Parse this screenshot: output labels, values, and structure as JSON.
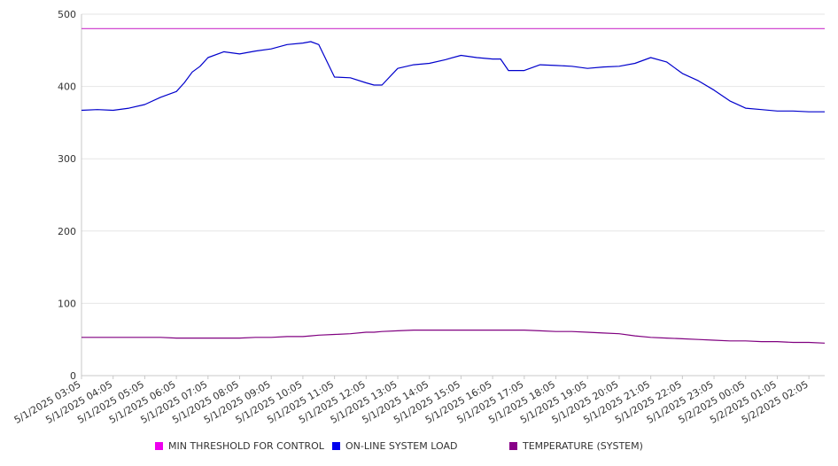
{
  "chart_data": {
    "type": "line",
    "title": "",
    "xlabel": "",
    "ylabel": "",
    "ylim": [
      0,
      500
    ],
    "yticks": [
      0,
      100,
      200,
      300,
      400,
      500
    ],
    "grid": "horizontal",
    "legend_position": "bottom",
    "x_tick_labels": [
      "5/1/2025 03:05",
      "5/1/2025 04:05",
      "5/1/2025 05:05",
      "5/1/2025 06:05",
      "5/1/2025 07:05",
      "5/1/2025 08:05",
      "5/1/2025 09:05",
      "5/1/2025 10:05",
      "5/1/2025 11:05",
      "5/1/2025 12:05",
      "5/1/2025 13:05",
      "5/1/2025 14:05",
      "5/1/2025 15:05",
      "5/1/2025 16:05",
      "5/1/2025 17:05",
      "5/1/2025 18:05",
      "5/1/2025 19:05",
      "5/1/2025 20:05",
      "5/1/2025 21:05",
      "5/1/2025 22:05",
      "5/1/2025 23:05",
      "5/2/2025 00:05",
      "5/2/2025 01:05",
      "5/2/2025 02:05"
    ],
    "x": [
      "5/1/2025 03:05",
      "5/1/2025 03:35",
      "5/1/2025 04:05",
      "5/1/2025 04:35",
      "5/1/2025 05:05",
      "5/1/2025 05:35",
      "5/1/2025 06:05",
      "5/1/2025 06:20",
      "5/1/2025 06:35",
      "5/1/2025 06:50",
      "5/1/2025 07:05",
      "5/1/2025 07:35",
      "5/1/2025 08:05",
      "5/1/2025 08:35",
      "5/1/2025 09:05",
      "5/1/2025 09:35",
      "5/1/2025 10:05",
      "5/1/2025 10:20",
      "5/1/2025 10:35",
      "5/1/2025 11:05",
      "5/1/2025 11:35",
      "5/1/2025 12:05",
      "5/1/2025 12:20",
      "5/1/2025 12:35",
      "5/1/2025 13:05",
      "5/1/2025 13:35",
      "5/1/2025 14:05",
      "5/1/2025 14:35",
      "5/1/2025 15:05",
      "5/1/2025 15:35",
      "5/1/2025 16:05",
      "5/1/2025 16:20",
      "5/1/2025 16:35",
      "5/1/2025 17:05",
      "5/1/2025 17:35",
      "5/1/2025 18:05",
      "5/1/2025 18:35",
      "5/1/2025 19:05",
      "5/1/2025 19:35",
      "5/1/2025 20:05",
      "5/1/2025 20:35",
      "5/1/2025 21:05",
      "5/1/2025 21:35",
      "5/1/2025 22:05",
      "5/1/2025 22:35",
      "5/1/2025 23:05",
      "5/1/2025 23:35",
      "5/2/2025 00:05",
      "5/2/2025 00:35",
      "5/2/2025 01:05",
      "5/2/2025 01:35",
      "5/2/2025 02:05",
      "5/2/2025 02:35"
    ],
    "series": [
      {
        "name": "MIN THRESHOLD FOR CONTROL",
        "color": "#cc33cc",
        "values": [
          480,
          480,
          480,
          480,
          480,
          480,
          480,
          480,
          480,
          480,
          480,
          480,
          480,
          480,
          480,
          480,
          480,
          480,
          480,
          480,
          480,
          480,
          480,
          480,
          480,
          480,
          480,
          480,
          480,
          480,
          480,
          480,
          480,
          480,
          480,
          480,
          480,
          480,
          480,
          480,
          480,
          480,
          480,
          480,
          480,
          480,
          480,
          480,
          480,
          480,
          480,
          480,
          480
        ]
      },
      {
        "name": "ON-LINE SYSTEM LOAD",
        "color": "#0000cc",
        "values": [
          367,
          368,
          367,
          370,
          375,
          385,
          393,
          405,
          420,
          428,
          440,
          448,
          445,
          449,
          452,
          458,
          460,
          462,
          458,
          413,
          412,
          405,
          402,
          402,
          425,
          430,
          432,
          437,
          443,
          440,
          438,
          438,
          422,
          422,
          430,
          429,
          428,
          425,
          427,
          428,
          432,
          440,
          434,
          418,
          408,
          395,
          380,
          370,
          368,
          366,
          366,
          365,
          365
        ]
      },
      {
        "name": "TEMPERATURE (SYSTEM)",
        "color": "#800080",
        "values": [
          53,
          53,
          53,
          53,
          53,
          53,
          52,
          52,
          52,
          52,
          52,
          52,
          52,
          53,
          53,
          54,
          54,
          55,
          56,
          57,
          58,
          60,
          60,
          61,
          62,
          63,
          63,
          63,
          63,
          63,
          63,
          63,
          63,
          63,
          62,
          61,
          61,
          60,
          59,
          58,
          55,
          53,
          52,
          51,
          50,
          49,
          48,
          48,
          47,
          47,
          46,
          46,
          45
        ]
      }
    ]
  },
  "legend": {
    "swatch_colors": [
      "#ee00ee",
      "#0000ee",
      "#880088"
    ]
  }
}
